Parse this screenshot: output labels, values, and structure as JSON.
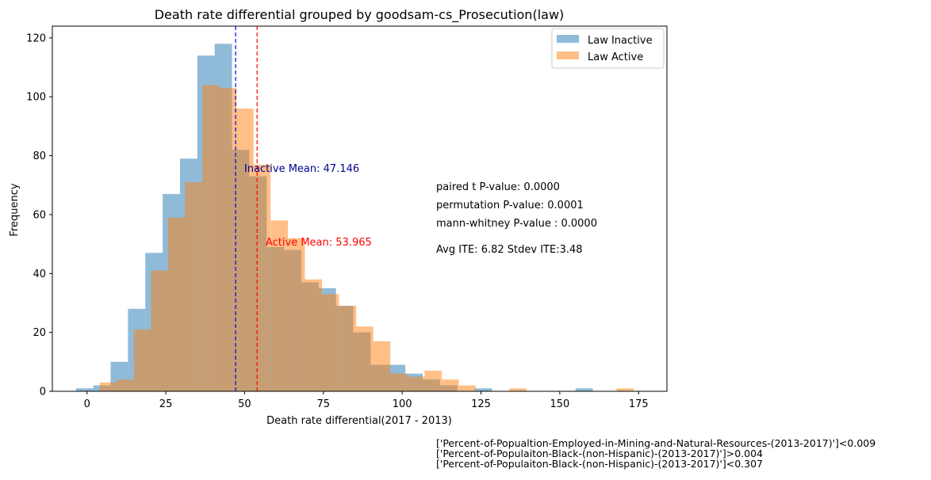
{
  "chart_data": {
    "type": "bar",
    "title": "Death rate differential grouped by goodsam-cs_Prosecution(law)",
    "xlabel": "Death rate differential(2017 - 2013)",
    "ylabel": "Frequency",
    "xlim": [
      -11,
      184
    ],
    "ylim": [
      0,
      124
    ],
    "xticks": [
      0,
      25,
      50,
      75,
      100,
      125,
      150,
      175
    ],
    "yticks": [
      0,
      20,
      40,
      60,
      80,
      100,
      120
    ],
    "grid": false,
    "legend_position": "top-right",
    "series": [
      {
        "name": "Law Inactive",
        "color": "#1f77b4",
        "opacity": 0.5,
        "bin_width": 5.5,
        "bins": [
          [
            -3.5,
            1
          ],
          [
            2,
            2
          ],
          [
            7.5,
            10
          ],
          [
            13,
            28
          ],
          [
            18.5,
            47
          ],
          [
            24,
            67
          ],
          [
            29.5,
            79
          ],
          [
            35,
            114
          ],
          [
            40.5,
            118
          ],
          [
            46,
            82
          ],
          [
            51.5,
            73
          ],
          [
            57,
            49
          ],
          [
            62.5,
            48
          ],
          [
            68,
            37
          ],
          [
            73.5,
            35
          ],
          [
            79,
            29
          ],
          [
            84.5,
            20
          ],
          [
            90,
            9
          ],
          [
            95.5,
            9
          ],
          [
            101,
            6
          ],
          [
            106.5,
            4
          ],
          [
            112,
            2
          ],
          [
            117.5,
            0
          ],
          [
            123,
            1
          ],
          [
            155,
            1
          ]
        ]
      },
      {
        "name": "Law Active",
        "color": "#ff7f0e",
        "opacity": 0.5,
        "bin_width": 5.43,
        "bins": [
          [
            4,
            3
          ],
          [
            9.4,
            4
          ],
          [
            14.9,
            21
          ],
          [
            20.3,
            41
          ],
          [
            25.7,
            59
          ],
          [
            31.1,
            71
          ],
          [
            36.6,
            104
          ],
          [
            42,
            103
          ],
          [
            47.4,
            96
          ],
          [
            52.8,
            77
          ],
          [
            58.3,
            58
          ],
          [
            63.7,
            52
          ],
          [
            69.1,
            38
          ],
          [
            74.5,
            33
          ],
          [
            80,
            29
          ],
          [
            85.4,
            22
          ],
          [
            90.8,
            17
          ],
          [
            96.2,
            6
          ],
          [
            101.7,
            5
          ],
          [
            107.1,
            7
          ],
          [
            112.5,
            4
          ],
          [
            117.9,
            2
          ],
          [
            134,
            1
          ],
          [
            168,
            1
          ]
        ]
      }
    ],
    "mean_lines": [
      {
        "name": "Inactive Mean",
        "x": 47.146,
        "color": "#0000ff"
      },
      {
        "name": "Active Mean",
        "x": 53.965,
        "color": "#ff0000"
      }
    ],
    "annotations": {
      "inactive_mean_label": "Inactive Mean: 47.146",
      "inactive_mean_color": "#00008b",
      "active_mean_label": "Active Mean: 53.965",
      "active_mean_color": "#ff0000",
      "stats": [
        "paired t P-value: 0.0000",
        "permutation P-value: 0.0001",
        "mann-whitney P-value : 0.0000",
        "Avg ITE: 6.82 Stdev ITE:3.48"
      ],
      "conditions": [
        "['Percent-of-Popualtion-Employed-in-Mining-and-Natural-Resources-(2013-2017)']<0.009",
        "['Percent-of-Populaiton-Black-(non-Hispanic)-(2013-2017)']>0.004",
        "['Percent-of-Populaiton-Black-(non-Hispanic)-(2013-2017)']<0.307"
      ]
    }
  }
}
